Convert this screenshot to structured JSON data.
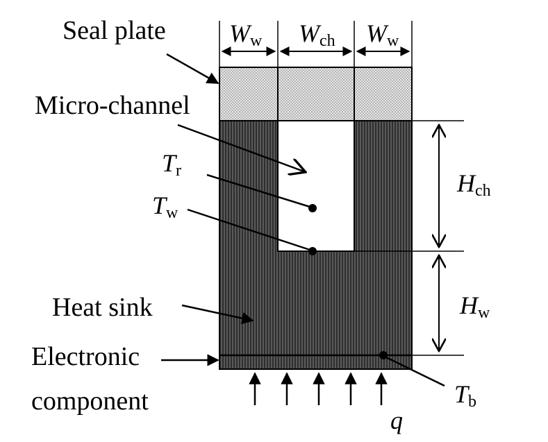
{
  "labels": {
    "seal_plate": "Seal plate",
    "micro_channel": "Micro-channel",
    "heat_sink": "Heat sink",
    "electronic_line1": "Electronic",
    "electronic_line2": "component"
  },
  "symbols": {
    "Ww_left": {
      "main": "W",
      "sub": "w"
    },
    "Wch": {
      "main": "W",
      "sub": "ch"
    },
    "Ww_right": {
      "main": "W",
      "sub": "w"
    },
    "Tr": {
      "main": "T",
      "sub": "r"
    },
    "Tw": {
      "main": "T",
      "sub": "w"
    },
    "Hch": {
      "main": "H",
      "sub": "ch"
    },
    "Hw": {
      "main": "H",
      "sub": "w"
    },
    "Tb": {
      "main": "T",
      "sub": "b"
    },
    "q": {
      "main": "q"
    }
  },
  "colors": {
    "sink_fill": "#5a5a5a",
    "sink_hatch": "#1a1a1a",
    "seal_fill": "#e6e6e6",
    "seal_dot": "#7a7a7a",
    "line": "#000000",
    "background": "#ffffff"
  }
}
